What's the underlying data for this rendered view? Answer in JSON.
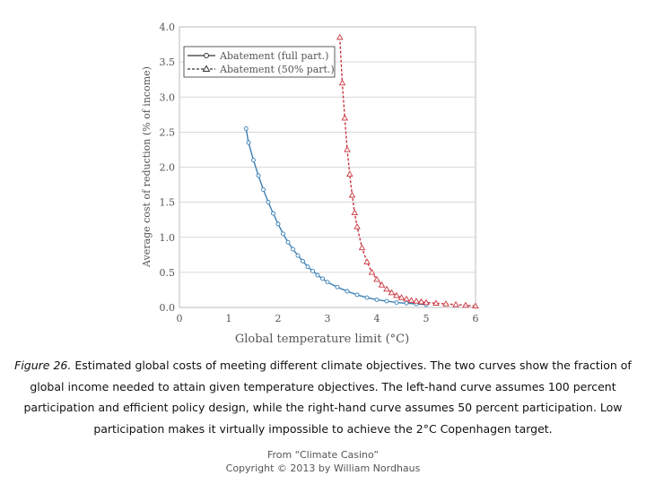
{
  "chart_data": {
    "type": "line",
    "title": "",
    "xlabel": "Global temperature limit (°C)",
    "ylabel": "Average cost of reduction (% of income)",
    "xlim": [
      0,
      6
    ],
    "ylim": [
      0,
      4
    ],
    "x_ticks": [
      "0",
      "1",
      "2",
      "3",
      "4",
      "5",
      "6"
    ],
    "y_ticks": [
      "0.0",
      "0.5",
      "1.0",
      "1.5",
      "2.0",
      "2.5",
      "3.0",
      "3.5",
      "4.0"
    ],
    "grid": true,
    "legend_position": "top-left",
    "series": [
      {
        "name": "Abatement (full part.)",
        "color": "#3a7fb5",
        "marker": "circle",
        "line_style": "solid",
        "x": [
          1.35,
          1.4,
          1.5,
          1.6,
          1.7,
          1.8,
          1.9,
          2.0,
          2.1,
          2.2,
          2.3,
          2.4,
          2.5,
          2.6,
          2.7,
          2.8,
          2.9,
          3.0,
          3.2,
          3.4,
          3.6,
          3.8,
          4.0,
          4.2,
          4.4,
          4.6,
          4.8,
          5.0
        ],
        "y": [
          2.55,
          2.35,
          2.1,
          1.88,
          1.68,
          1.5,
          1.34,
          1.19,
          1.05,
          0.93,
          0.83,
          0.74,
          0.66,
          0.58,
          0.52,
          0.46,
          0.41,
          0.36,
          0.29,
          0.23,
          0.18,
          0.14,
          0.11,
          0.09,
          0.07,
          0.06,
          0.05,
          0.04
        ]
      },
      {
        "name": "Abatement (50% part.)",
        "color": "#c9353e",
        "marker": "triangle",
        "line_style": "dashed",
        "x": [
          3.25,
          3.3,
          3.35,
          3.4,
          3.45,
          3.5,
          3.55,
          3.6,
          3.7,
          3.8,
          3.9,
          4.0,
          4.1,
          4.2,
          4.3,
          4.4,
          4.5,
          4.6,
          4.7,
          4.8,
          4.9,
          5.0,
          5.2,
          5.4,
          5.6,
          5.8,
          6.0
        ],
        "y": [
          3.85,
          3.2,
          2.7,
          2.25,
          1.9,
          1.6,
          1.35,
          1.15,
          0.85,
          0.65,
          0.5,
          0.4,
          0.32,
          0.26,
          0.21,
          0.17,
          0.14,
          0.12,
          0.1,
          0.09,
          0.08,
          0.07,
          0.06,
          0.05,
          0.04,
          0.03,
          0.02
        ]
      }
    ]
  },
  "caption": {
    "figure_label": "Figure 26.",
    "text": " Estimated global costs of meeting different climate objectives. The two curves show the fraction of global income needed to attain given temperature objectives. The left-hand curve assumes 100 percent participation and efficient policy design, while the right-hand curve assumes 50 percent participation.  Low participation makes it virtually impossible to achieve the 2°C Copenhagen target."
  },
  "credit": {
    "line1": "From “Climate Casino”",
    "line2": "Copyright © 2013 by William Nordhaus"
  }
}
